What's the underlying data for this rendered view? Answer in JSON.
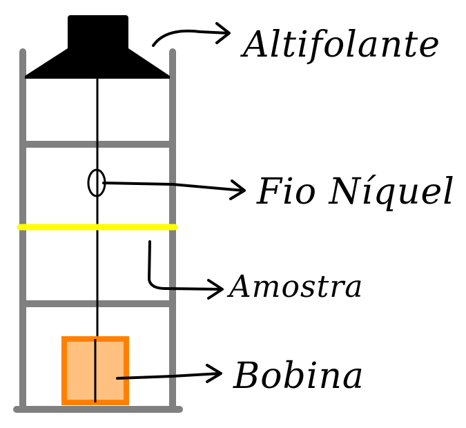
{
  "labels": {
    "speaker": "Altifolante",
    "wire": "Fio Níquel",
    "sample": "Amostra",
    "coil": "Bobina"
  },
  "colors": {
    "frame": "#808080",
    "speaker": "#000000",
    "sample": "#ffff00",
    "coil_border": "#ff8000",
    "coil_fill": "#ffc080",
    "line": "#000000"
  }
}
